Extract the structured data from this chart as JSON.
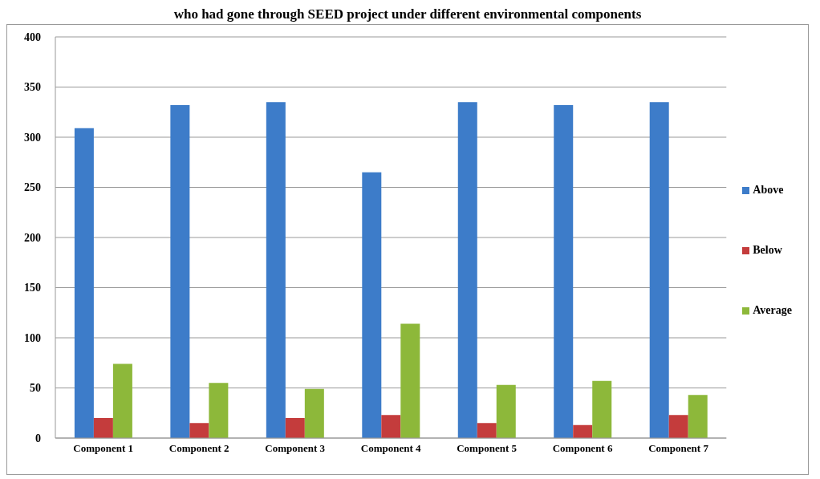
{
  "chart_data": {
    "type": "bar",
    "title": "who had gone through SEED project under different environmental components",
    "categories": [
      "Component 1",
      "Component 2",
      "Component 3",
      "Component 4",
      "Component 5",
      "Component 6",
      "Component 7"
    ],
    "series": [
      {
        "name": "Above",
        "color": "#3d7cc9",
        "values": [
          309,
          332,
          335,
          265,
          335,
          332,
          335
        ]
      },
      {
        "name": "Below",
        "color": "#c43c3c",
        "values": [
          20,
          15,
          20,
          23,
          15,
          13,
          23
        ]
      },
      {
        "name": "Average",
        "color": "#8db83a",
        "values": [
          74,
          55,
          49,
          114,
          53,
          57,
          43
        ]
      }
    ],
    "ylim": [
      0,
      400
    ],
    "yticks": [
      0,
      50,
      100,
      150,
      200,
      250,
      300,
      350,
      400
    ],
    "grid": "y",
    "legend": "right"
  }
}
